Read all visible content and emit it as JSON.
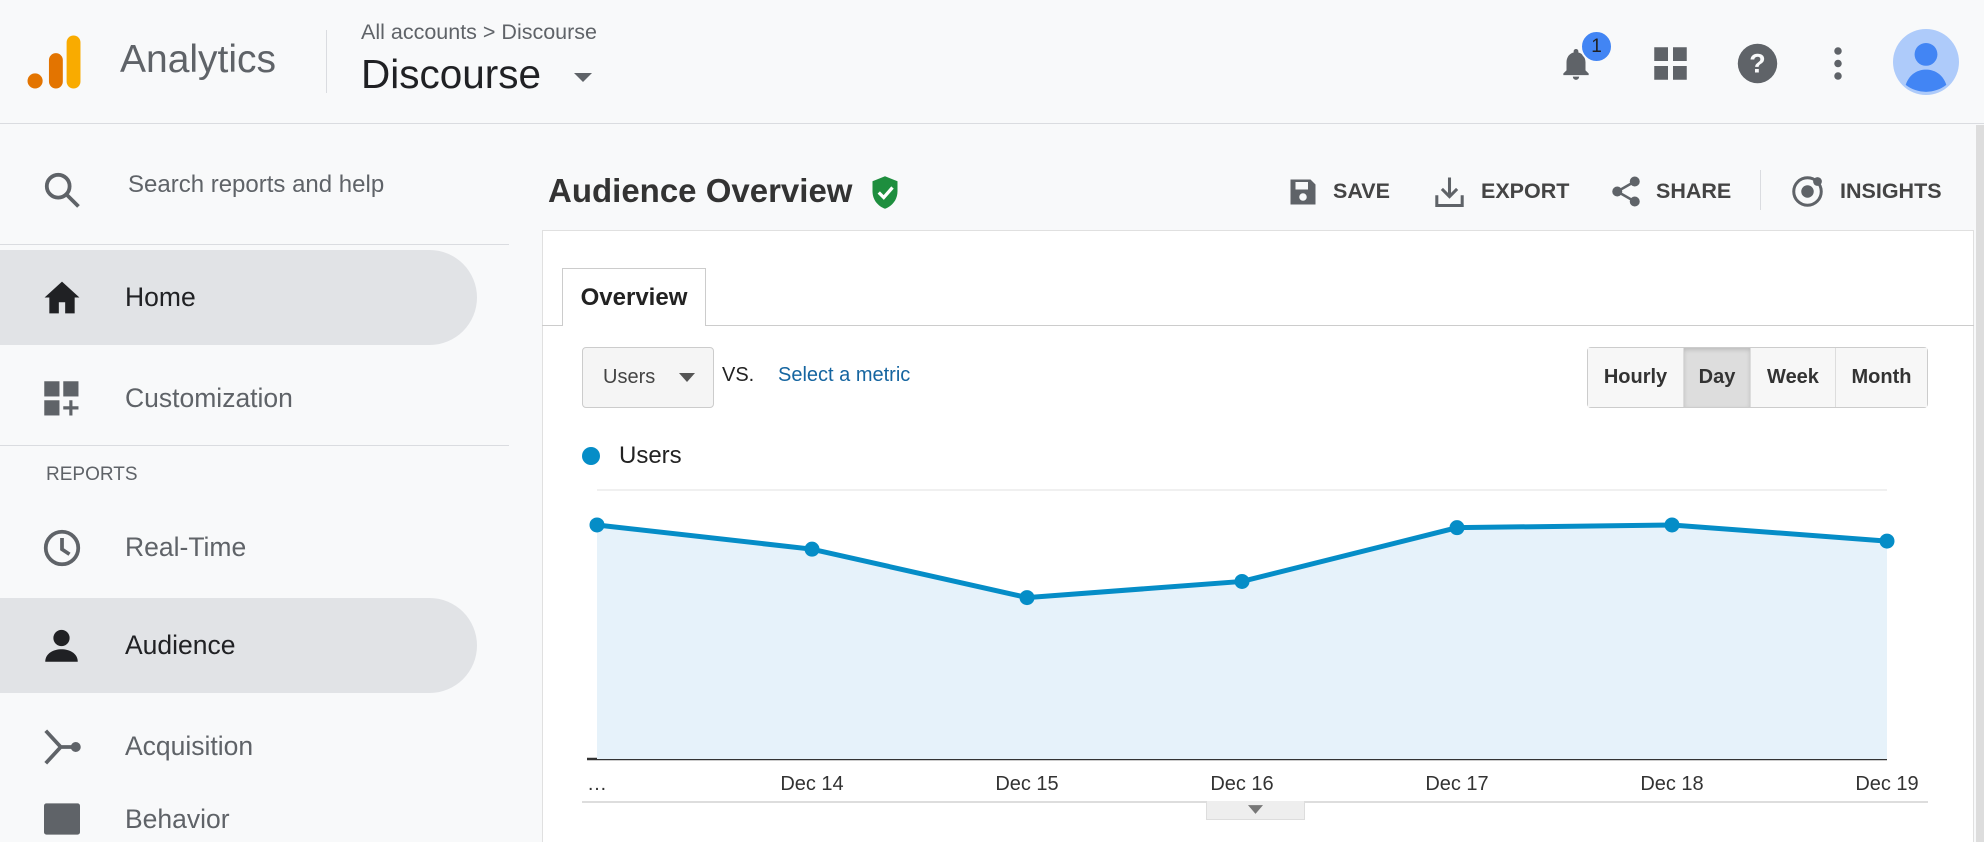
{
  "header": {
    "app_name": "Analytics",
    "breadcrumb": "All accounts > Discourse",
    "property": "Discourse",
    "notification_count": "1",
    "icons": [
      "analytics-logo",
      "bell-icon",
      "apps-grid-icon",
      "help-icon",
      "more-vert-icon",
      "avatar"
    ]
  },
  "sidebar": {
    "search_placeholder": "Search reports and help",
    "section_label": "REPORTS",
    "items": [
      {
        "label": "Home",
        "icon": "home-icon",
        "selected": true
      },
      {
        "label": "Customization",
        "icon": "dashboard-add-icon",
        "selected": false
      },
      {
        "label": "Real-Time",
        "icon": "clock-icon",
        "selected": false
      },
      {
        "label": "Audience",
        "icon": "person-icon",
        "selected": true
      },
      {
        "label": "Acquisition",
        "icon": "merge-icon",
        "selected": false
      },
      {
        "label": "Behavior",
        "icon": "behavior-icon",
        "selected": false
      }
    ]
  },
  "main": {
    "title": "Audience Overview",
    "verified_icon": "shield-check-icon",
    "actions": {
      "save": "SAVE",
      "export": "EXPORT",
      "share": "SHARE",
      "insights": "INSIGHTS"
    },
    "tab": "Overview",
    "metric_select": "Users",
    "vs": "VS.",
    "select_metric": "Select a metric",
    "granularity": [
      "Hourly",
      "Day",
      "Week",
      "Month"
    ],
    "granularity_selected": "Day"
  },
  "colors": {
    "series": "#058dc7",
    "fill": "#e6f2fa",
    "shield": "#1e8e3e",
    "badge": "#4285f4"
  },
  "chart_data": {
    "type": "area",
    "legend": [
      "Users"
    ],
    "legend_position": "top-left",
    "x": [
      "…",
      "Dec 14",
      "Dec 15",
      "Dec 16",
      "Dec 17",
      "Dec 18",
      "Dec 19"
    ],
    "series": [
      {
        "name": "Users",
        "values": [
          0.87,
          0.78,
          0.6,
          0.66,
          0.86,
          0.87,
          0.81
        ]
      }
    ],
    "ylim": [
      0,
      1
    ],
    "y_labels_shown": false,
    "grid": true
  }
}
